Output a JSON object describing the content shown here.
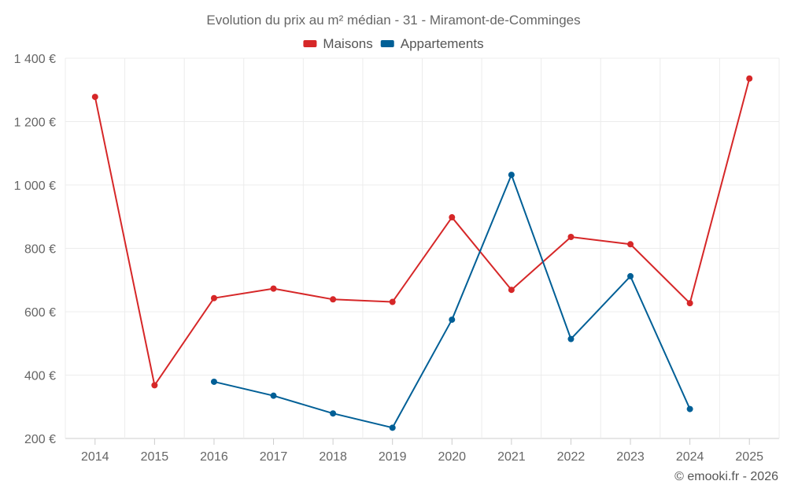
{
  "chart_data": {
    "type": "line",
    "title": "Evolution du prix au m² médian - 31 - Miramont-de-Comminges",
    "categories": [
      "2014",
      "2015",
      "2016",
      "2017",
      "2018",
      "2019",
      "2020",
      "2021",
      "2022",
      "2023",
      "2024",
      "2025"
    ],
    "y_ticks": [
      200,
      400,
      600,
      800,
      1000,
      1200,
      1400
    ],
    "y_tick_labels": [
      "200 €",
      "400 €",
      "600 €",
      "800 €",
      "1 000 €",
      "1 200 €",
      "1 400 €"
    ],
    "ylim": [
      200,
      1400
    ],
    "grid": true,
    "legend_position": "top-center",
    "series": [
      {
        "name": "Maisons",
        "color": "#d62728",
        "values": [
          1278,
          368,
          643,
          673,
          639,
          631,
          898,
          669,
          836,
          813,
          627,
          1336
        ]
      },
      {
        "name": "Appartements",
        "color": "#005f96",
        "values": [
          null,
          null,
          379,
          335,
          279,
          234,
          575,
          1032,
          514,
          712,
          293,
          null
        ]
      }
    ],
    "credit": "© emooki.fr - 2026"
  }
}
